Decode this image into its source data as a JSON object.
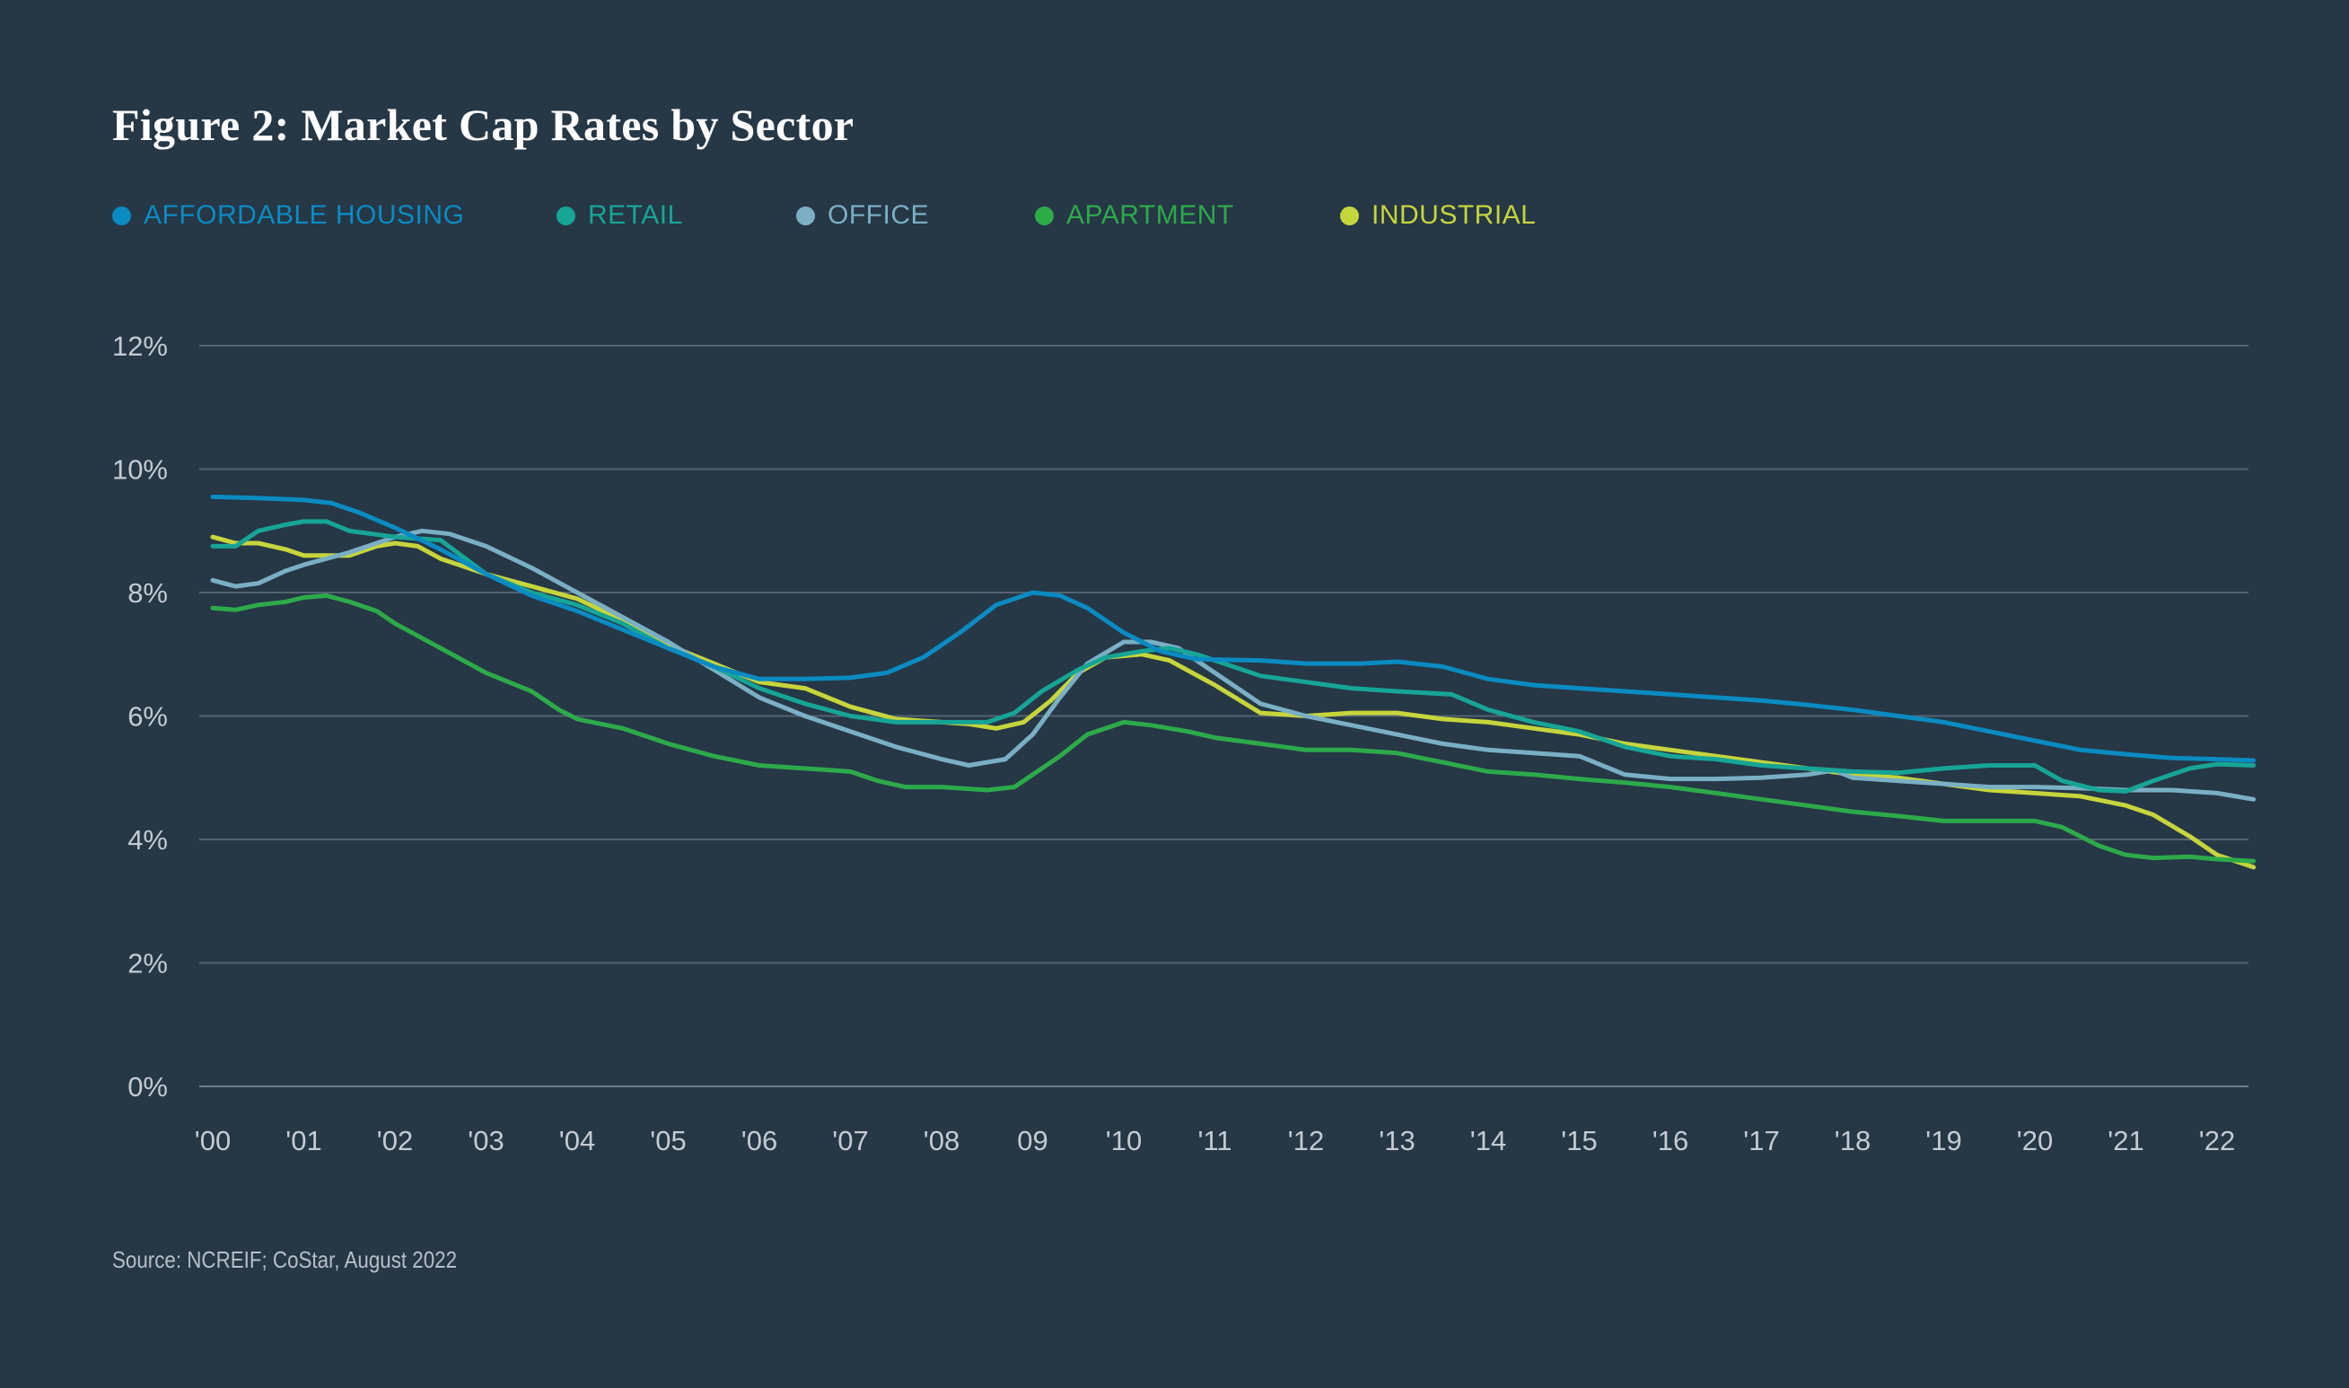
{
  "chart_data": {
    "type": "line",
    "title": "Figure 2: Market Cap Rates by Sector",
    "xlabel": "",
    "ylabel": "",
    "ylim": [
      0,
      12
    ],
    "xlim": [
      2000,
      2022.6
    ],
    "grid": true,
    "legend_position": "top-left",
    "y_ticks": [
      {
        "value": 0,
        "label": "0%"
      },
      {
        "value": 2,
        "label": "2%"
      },
      {
        "value": 4,
        "label": "4%"
      },
      {
        "value": 6,
        "label": "6%"
      },
      {
        "value": 8,
        "label": "8%"
      },
      {
        "value": 10,
        "label": "10%"
      },
      {
        "value": 12,
        "label": "12%"
      }
    ],
    "x_ticks": [
      {
        "value": 2000,
        "label": "'00"
      },
      {
        "value": 2001,
        "label": "'01"
      },
      {
        "value": 2002,
        "label": "'02"
      },
      {
        "value": 2003,
        "label": "'03"
      },
      {
        "value": 2004,
        "label": "'04"
      },
      {
        "value": 2005,
        "label": "'05"
      },
      {
        "value": 2006,
        "label": "'06"
      },
      {
        "value": 2007,
        "label": "'07"
      },
      {
        "value": 2008,
        "label": "'08"
      },
      {
        "value": 2009,
        "label": "09"
      },
      {
        "value": 2010,
        "label": "'10"
      },
      {
        "value": 2011,
        "label": "'11"
      },
      {
        "value": 2012,
        "label": "'12"
      },
      {
        "value": 2013,
        "label": "'13"
      },
      {
        "value": 2014,
        "label": "'14"
      },
      {
        "value": 2015,
        "label": "'15"
      },
      {
        "value": 2016,
        "label": "'16"
      },
      {
        "value": 2017,
        "label": "'17"
      },
      {
        "value": 2018,
        "label": "'18"
      },
      {
        "value": 2019,
        "label": "'19"
      },
      {
        "value": 2020,
        "label": "'20"
      },
      {
        "value": 2021,
        "label": "'21"
      },
      {
        "value": 2022,
        "label": "'22"
      }
    ],
    "series": [
      {
        "name": "AFFORDABLE HOUSING",
        "color": "#0a8bc2",
        "points": [
          [
            2000.0,
            9.55
          ],
          [
            2000.5,
            9.53
          ],
          [
            2001.0,
            9.5
          ],
          [
            2001.3,
            9.45
          ],
          [
            2001.6,
            9.3
          ],
          [
            2002.0,
            9.05
          ],
          [
            2002.5,
            8.7
          ],
          [
            2003.0,
            8.3
          ],
          [
            2003.5,
            7.95
          ],
          [
            2004.0,
            7.7
          ],
          [
            2004.5,
            7.4
          ],
          [
            2005.0,
            7.1
          ],
          [
            2005.5,
            6.8
          ],
          [
            2006.0,
            6.6
          ],
          [
            2006.5,
            6.6
          ],
          [
            2007.0,
            6.62
          ],
          [
            2007.4,
            6.7
          ],
          [
            2007.8,
            6.95
          ],
          [
            2008.2,
            7.35
          ],
          [
            2008.6,
            7.8
          ],
          [
            2009.0,
            8.0
          ],
          [
            2009.3,
            7.95
          ],
          [
            2009.6,
            7.75
          ],
          [
            2010.0,
            7.35
          ],
          [
            2010.4,
            7.05
          ],
          [
            2010.8,
            6.92
          ],
          [
            2011.5,
            6.9
          ],
          [
            2012.0,
            6.85
          ],
          [
            2012.6,
            6.85
          ],
          [
            2013.0,
            6.88
          ],
          [
            2013.5,
            6.8
          ],
          [
            2014.0,
            6.6
          ],
          [
            2014.5,
            6.5
          ],
          [
            2015.0,
            6.45
          ],
          [
            2015.5,
            6.4
          ],
          [
            2016.0,
            6.35
          ],
          [
            2016.5,
            6.3
          ],
          [
            2017.0,
            6.25
          ],
          [
            2017.5,
            6.18
          ],
          [
            2018.0,
            6.1
          ],
          [
            2018.5,
            6.0
          ],
          [
            2019.0,
            5.9
          ],
          [
            2019.5,
            5.75
          ],
          [
            2020.0,
            5.6
          ],
          [
            2020.5,
            5.45
          ],
          [
            2021.0,
            5.38
          ],
          [
            2021.5,
            5.32
          ],
          [
            2022.0,
            5.3
          ],
          [
            2022.4,
            5.28
          ]
        ]
      },
      {
        "name": "RETAIL",
        "color": "#16a596",
        "points": [
          [
            2000.0,
            8.75
          ],
          [
            2000.25,
            8.75
          ],
          [
            2000.5,
            9.0
          ],
          [
            2000.8,
            9.1
          ],
          [
            2001.0,
            9.15
          ],
          [
            2001.25,
            9.15
          ],
          [
            2001.5,
            9.0
          ],
          [
            2002.0,
            8.9
          ],
          [
            2002.5,
            8.85
          ],
          [
            2003.0,
            8.3
          ],
          [
            2003.5,
            8.0
          ],
          [
            2004.0,
            7.8
          ],
          [
            2004.5,
            7.5
          ],
          [
            2005.0,
            7.1
          ],
          [
            2005.5,
            6.8
          ],
          [
            2006.0,
            6.45
          ],
          [
            2006.5,
            6.2
          ],
          [
            2007.0,
            6.0
          ],
          [
            2007.5,
            5.9
          ],
          [
            2008.0,
            5.9
          ],
          [
            2008.5,
            5.9
          ],
          [
            2008.8,
            6.05
          ],
          [
            2009.1,
            6.4
          ],
          [
            2009.5,
            6.75
          ],
          [
            2009.8,
            6.95
          ],
          [
            2010.2,
            7.05
          ],
          [
            2010.5,
            7.1
          ],
          [
            2010.8,
            7.0
          ],
          [
            2011.0,
            6.9
          ],
          [
            2011.5,
            6.65
          ],
          [
            2012.0,
            6.55
          ],
          [
            2012.5,
            6.45
          ],
          [
            2013.0,
            6.4
          ],
          [
            2013.6,
            6.35
          ],
          [
            2014.0,
            6.1
          ],
          [
            2014.5,
            5.9
          ],
          [
            2015.0,
            5.75
          ],
          [
            2015.5,
            5.5
          ],
          [
            2016.0,
            5.35
          ],
          [
            2016.5,
            5.3
          ],
          [
            2017.0,
            5.2
          ],
          [
            2017.5,
            5.15
          ],
          [
            2018.0,
            5.1
          ],
          [
            2018.5,
            5.08
          ],
          [
            2019.0,
            5.15
          ],
          [
            2019.5,
            5.2
          ],
          [
            2020.0,
            5.2
          ],
          [
            2020.3,
            4.95
          ],
          [
            2020.7,
            4.8
          ],
          [
            2021.0,
            4.78
          ],
          [
            2021.3,
            4.95
          ],
          [
            2021.7,
            5.15
          ],
          [
            2022.0,
            5.22
          ],
          [
            2022.4,
            5.2
          ]
        ]
      },
      {
        "name": "OFFICE",
        "color": "#7aafc4",
        "points": [
          [
            2000.0,
            8.2
          ],
          [
            2000.25,
            8.1
          ],
          [
            2000.5,
            8.15
          ],
          [
            2000.8,
            8.35
          ],
          [
            2001.0,
            8.45
          ],
          [
            2001.5,
            8.65
          ],
          [
            2002.0,
            8.9
          ],
          [
            2002.3,
            9.0
          ],
          [
            2002.6,
            8.95
          ],
          [
            2003.0,
            8.75
          ],
          [
            2003.5,
            8.4
          ],
          [
            2004.0,
            8.0
          ],
          [
            2004.5,
            7.6
          ],
          [
            2005.0,
            7.2
          ],
          [
            2005.5,
            6.75
          ],
          [
            2006.0,
            6.3
          ],
          [
            2006.5,
            6.0
          ],
          [
            2007.0,
            5.75
          ],
          [
            2007.5,
            5.5
          ],
          [
            2008.0,
            5.3
          ],
          [
            2008.3,
            5.2
          ],
          [
            2008.7,
            5.3
          ],
          [
            2009.0,
            5.7
          ],
          [
            2009.3,
            6.3
          ],
          [
            2009.6,
            6.85
          ],
          [
            2010.0,
            7.2
          ],
          [
            2010.3,
            7.2
          ],
          [
            2010.6,
            7.1
          ],
          [
            2011.0,
            6.7
          ],
          [
            2011.5,
            6.2
          ],
          [
            2012.0,
            6.0
          ],
          [
            2012.5,
            5.85
          ],
          [
            2013.0,
            5.7
          ],
          [
            2013.5,
            5.55
          ],
          [
            2014.0,
            5.45
          ],
          [
            2014.5,
            5.4
          ],
          [
            2015.0,
            5.35
          ],
          [
            2015.5,
            5.05
          ],
          [
            2016.0,
            4.98
          ],
          [
            2016.5,
            4.98
          ],
          [
            2017.0,
            5.0
          ],
          [
            2017.5,
            5.05
          ],
          [
            2017.8,
            5.12
          ],
          [
            2018.0,
            5.0
          ],
          [
            2018.5,
            4.95
          ],
          [
            2019.0,
            4.9
          ],
          [
            2019.5,
            4.85
          ],
          [
            2020.0,
            4.85
          ],
          [
            2020.5,
            4.83
          ],
          [
            2021.0,
            4.8
          ],
          [
            2021.5,
            4.8
          ],
          [
            2022.0,
            4.75
          ],
          [
            2022.4,
            4.65
          ]
        ]
      },
      {
        "name": "APARTMENT",
        "color": "#2daa4a",
        "points": [
          [
            2000.0,
            7.75
          ],
          [
            2000.25,
            7.72
          ],
          [
            2000.5,
            7.8
          ],
          [
            2000.8,
            7.85
          ],
          [
            2001.0,
            7.92
          ],
          [
            2001.25,
            7.95
          ],
          [
            2001.5,
            7.85
          ],
          [
            2001.8,
            7.7
          ],
          [
            2002.0,
            7.5
          ],
          [
            2002.5,
            7.1
          ],
          [
            2003.0,
            6.7
          ],
          [
            2003.5,
            6.4
          ],
          [
            2003.8,
            6.1
          ],
          [
            2004.0,
            5.95
          ],
          [
            2004.5,
            5.8
          ],
          [
            2005.0,
            5.55
          ],
          [
            2005.5,
            5.35
          ],
          [
            2006.0,
            5.2
          ],
          [
            2006.5,
            5.15
          ],
          [
            2007.0,
            5.1
          ],
          [
            2007.3,
            4.95
          ],
          [
            2007.6,
            4.85
          ],
          [
            2008.0,
            4.85
          ],
          [
            2008.5,
            4.8
          ],
          [
            2008.8,
            4.85
          ],
          [
            2009.0,
            5.05
          ],
          [
            2009.3,
            5.35
          ],
          [
            2009.6,
            5.7
          ],
          [
            2010.0,
            5.9
          ],
          [
            2010.3,
            5.85
          ],
          [
            2010.7,
            5.75
          ],
          [
            2011.0,
            5.65
          ],
          [
            2011.5,
            5.55
          ],
          [
            2012.0,
            5.45
          ],
          [
            2012.5,
            5.45
          ],
          [
            2013.0,
            5.4
          ],
          [
            2013.5,
            5.25
          ],
          [
            2014.0,
            5.1
          ],
          [
            2014.5,
            5.05
          ],
          [
            2015.0,
            4.98
          ],
          [
            2015.5,
            4.92
          ],
          [
            2016.0,
            4.85
          ],
          [
            2016.5,
            4.75
          ],
          [
            2017.0,
            4.65
          ],
          [
            2017.5,
            4.55
          ],
          [
            2018.0,
            4.45
          ],
          [
            2018.5,
            4.38
          ],
          [
            2019.0,
            4.3
          ],
          [
            2019.5,
            4.3
          ],
          [
            2020.0,
            4.3
          ],
          [
            2020.3,
            4.2
          ],
          [
            2020.7,
            3.9
          ],
          [
            2021.0,
            3.75
          ],
          [
            2021.3,
            3.7
          ],
          [
            2021.7,
            3.72
          ],
          [
            2022.0,
            3.68
          ],
          [
            2022.4,
            3.65
          ]
        ]
      },
      {
        "name": "INDUSTRIAL",
        "color": "#c6d53b",
        "points": [
          [
            2000.0,
            8.9
          ],
          [
            2000.25,
            8.8
          ],
          [
            2000.5,
            8.8
          ],
          [
            2000.8,
            8.7
          ],
          [
            2001.0,
            8.6
          ],
          [
            2001.5,
            8.6
          ],
          [
            2001.8,
            8.75
          ],
          [
            2002.0,
            8.8
          ],
          [
            2002.25,
            8.75
          ],
          [
            2002.5,
            8.55
          ],
          [
            2003.0,
            8.3
          ],
          [
            2003.5,
            8.1
          ],
          [
            2004.0,
            7.9
          ],
          [
            2004.5,
            7.55
          ],
          [
            2005.0,
            7.15
          ],
          [
            2005.5,
            6.85
          ],
          [
            2006.0,
            6.55
          ],
          [
            2006.5,
            6.45
          ],
          [
            2007.0,
            6.15
          ],
          [
            2007.5,
            5.95
          ],
          [
            2008.0,
            5.9
          ],
          [
            2008.3,
            5.87
          ],
          [
            2008.6,
            5.8
          ],
          [
            2008.9,
            5.9
          ],
          [
            2009.2,
            6.25
          ],
          [
            2009.5,
            6.7
          ],
          [
            2009.8,
            6.95
          ],
          [
            2010.2,
            7.0
          ],
          [
            2010.5,
            6.9
          ],
          [
            2011.0,
            6.5
          ],
          [
            2011.5,
            6.05
          ],
          [
            2012.0,
            6.0
          ],
          [
            2012.5,
            6.05
          ],
          [
            2013.0,
            6.05
          ],
          [
            2013.5,
            5.95
          ],
          [
            2014.0,
            5.9
          ],
          [
            2014.5,
            5.8
          ],
          [
            2015.0,
            5.7
          ],
          [
            2015.5,
            5.55
          ],
          [
            2016.0,
            5.45
          ],
          [
            2016.5,
            5.35
          ],
          [
            2017.0,
            5.25
          ],
          [
            2017.5,
            5.15
          ],
          [
            2018.0,
            5.05
          ],
          [
            2018.5,
            5.0
          ],
          [
            2019.0,
            4.9
          ],
          [
            2019.5,
            4.8
          ],
          [
            2020.0,
            4.75
          ],
          [
            2020.5,
            4.7
          ],
          [
            2021.0,
            4.55
          ],
          [
            2021.3,
            4.4
          ],
          [
            2021.7,
            4.05
          ],
          [
            2022.0,
            3.75
          ],
          [
            2022.4,
            3.55
          ]
        ]
      }
    ]
  },
  "source": "Source: NCREIF; CoStar, August 2022"
}
